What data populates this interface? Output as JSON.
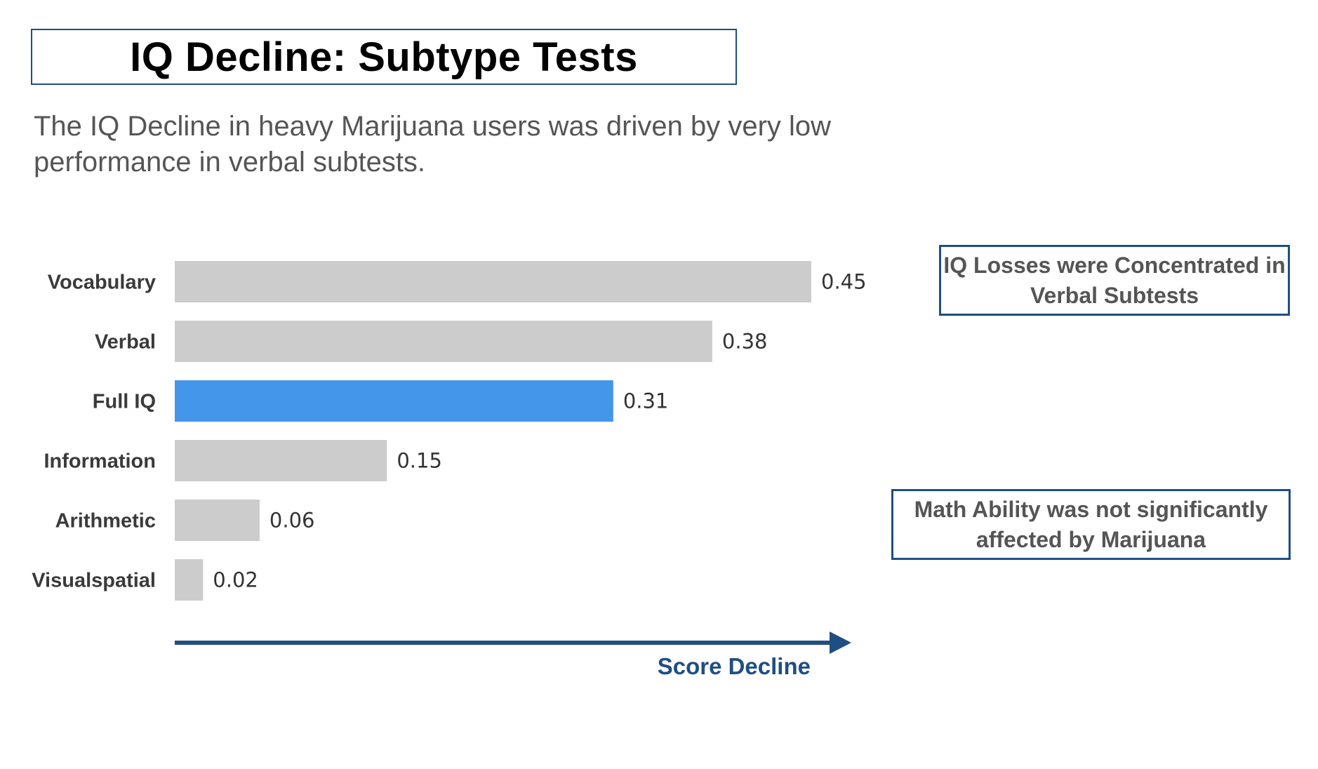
{
  "title": "IQ Decline: Subtype Tests",
  "subtitle": "The IQ Decline in heavy Marijuana users was driven by very low performance in verbal subtests.",
  "notes": {
    "verbal": "IQ Losses were Concentrated in Verbal Subtests",
    "math": "Math Ability was not significantly affected by Marijuana"
  },
  "colors": {
    "highlight": "#4496ea",
    "default_bar": "#cccccc",
    "accent": "#1f4e82"
  },
  "chart_data": {
    "type": "bar",
    "orientation": "horizontal",
    "categories": [
      "Vocabulary",
      "Verbal",
      "Full IQ",
      "Information",
      "Arithmetic",
      "Visualspatial"
    ],
    "values": [
      0.45,
      0.38,
      0.31,
      0.15,
      0.06,
      0.02
    ],
    "value_labels": [
      "0.45",
      "0.38",
      "0.31",
      "0.15",
      "0.06",
      "0.02"
    ],
    "highlighted_category": "Full IQ",
    "xlabel": "Score Decline",
    "xlim": [
      0,
      0.45
    ],
    "grid": false
  }
}
